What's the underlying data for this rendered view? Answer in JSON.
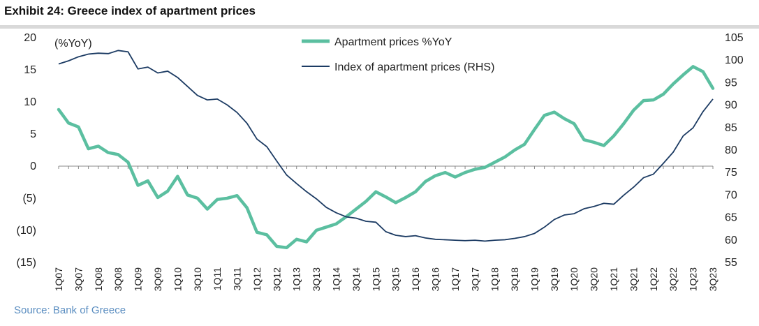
{
  "exhibit": {
    "title": "Exhibit 24: Greece index of apartment prices",
    "source": "Source: Bank of Greece"
  },
  "colors": {
    "yoy_series": "#5bbfa0",
    "index_series": "#1c3b63",
    "axis": "#888888",
    "source_text": "#5b8ec1"
  },
  "chart_data": {
    "type": "line",
    "title": "",
    "left_axis_label": "(%YoY)",
    "left_axis": {
      "min": -15,
      "max": 20,
      "ticks": [
        20,
        15,
        10,
        5,
        0,
        -5,
        -10,
        -15
      ],
      "tick_labels": [
        "20",
        "15",
        "10",
        "5",
        "0",
        "(5)",
        "(10)",
        "(15)"
      ]
    },
    "right_axis": {
      "min": 55,
      "max": 105,
      "ticks": [
        105,
        100,
        95,
        90,
        85,
        80,
        75,
        70,
        65,
        60,
        55
      ],
      "tick_labels": [
        "105",
        "100",
        "95",
        "90",
        "85",
        "80",
        "75",
        "70",
        "65",
        "60",
        "55"
      ]
    },
    "x_tick_labels": [
      "1Q07",
      "3Q07",
      "1Q08",
      "3Q08",
      "1Q09",
      "3Q09",
      "1Q10",
      "3Q10",
      "1Q11",
      "3Q11",
      "1Q12",
      "3Q12",
      "1Q13",
      "3Q13",
      "1Q14",
      "3Q14",
      "1Q15",
      "3Q15",
      "1Q16",
      "3Q16",
      "1Q17",
      "3Q17",
      "1Q18",
      "3Q18",
      "1Q19",
      "3Q19",
      "1Q20",
      "3Q20",
      "1Q21",
      "3Q21",
      "1Q22",
      "3Q22",
      "1Q23",
      "3Q23"
    ],
    "legend_position": "top-center",
    "grid": false,
    "series": [
      {
        "name": "Apartment prices %YoY",
        "axis": "left",
        "values": [
          8.7,
          6.6,
          6.0,
          2.6,
          3.0,
          2.0,
          1.7,
          0.5,
          -3.1,
          -2.4,
          -5.0,
          -4.0,
          -1.7,
          -4.6,
          -5.1,
          -6.8,
          -5.3,
          -5.1,
          -4.7,
          -6.6,
          -10.4,
          -10.8,
          -12.6,
          -12.8,
          -11.5,
          -11.9,
          -10.1,
          -9.6,
          -9.1,
          -8.0,
          -6.8,
          -5.6,
          -4.1,
          -4.9,
          -5.8,
          -5.0,
          -4.1,
          -2.5,
          -1.6,
          -1.1,
          -1.8,
          -1.1,
          -0.6,
          -0.3,
          0.5,
          1.3,
          2.4,
          3.3,
          5.6,
          7.8,
          8.3,
          7.3,
          6.5,
          4.0,
          3.6,
          3.1,
          4.6,
          6.5,
          8.6,
          10.1,
          10.2,
          11.1,
          12.7,
          14.1,
          15.4,
          14.6,
          12.0
        ]
      },
      {
        "name": "Index of apartment prices (RHS)",
        "axis": "right",
        "values": [
          99.0,
          99.7,
          100.6,
          101.2,
          101.4,
          101.3,
          102.0,
          101.7,
          97.9,
          98.3,
          97.0,
          97.4,
          96.0,
          94.0,
          92.0,
          91.0,
          91.2,
          89.9,
          88.2,
          85.8,
          82.3,
          80.6,
          77.4,
          74.3,
          72.4,
          70.6,
          69.0,
          67.1,
          65.9,
          65.0,
          64.7,
          64.0,
          63.8,
          61.7,
          60.9,
          60.6,
          60.8,
          60.3,
          60.0,
          59.9,
          59.8,
          59.7,
          59.8,
          59.6,
          59.8,
          59.9,
          60.2,
          60.6,
          61.3,
          62.7,
          64.4,
          65.4,
          65.7,
          66.8,
          67.3,
          68.0,
          67.8,
          69.8,
          71.6,
          73.7,
          74.5,
          76.9,
          79.4,
          83.0,
          84.8,
          88.4,
          91.2
        ]
      }
    ]
  }
}
